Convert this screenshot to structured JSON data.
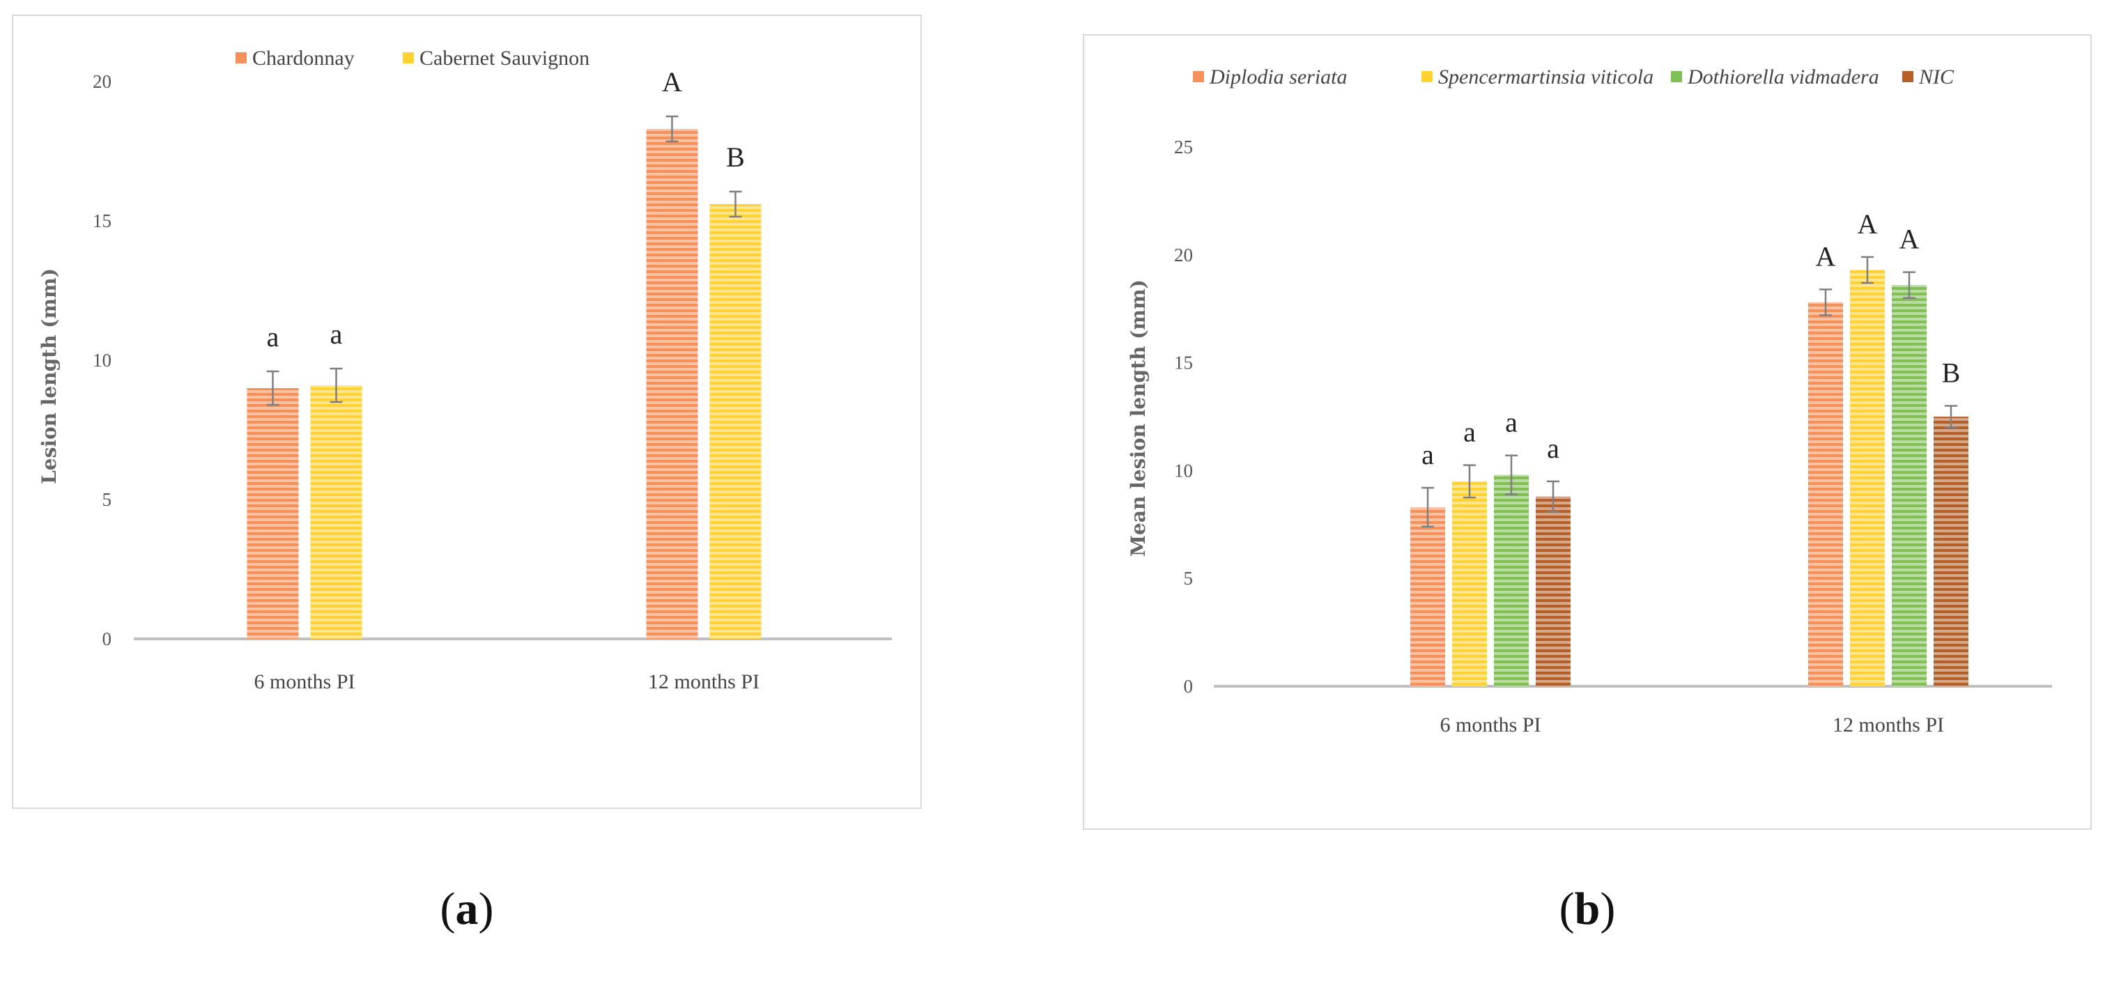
{
  "panels": [
    {
      "letter": "a",
      "open": "(",
      "close": ")"
    },
    {
      "letter": "b",
      "open": "(",
      "close": ")"
    }
  ],
  "chart_data": [
    {
      "type": "bar",
      "ylabel": "Lesion length (mm)",
      "xlabel": "",
      "ylim": [
        0,
        20
      ],
      "yticks": [
        "0",
        "5",
        "10",
        "15",
        "20"
      ],
      "categories": [
        "6 months PI",
        "12 months PI"
      ],
      "legend_position": "top",
      "series": [
        {
          "name": "Chardonnay",
          "color": "#f4905a",
          "values": [
            9.0,
            18.3
          ],
          "errors": [
            0.6,
            0.45
          ],
          "letters": [
            "a",
            "A"
          ]
        },
        {
          "name": "Cabernet Sauvignon",
          "color": "#fdd231",
          "values": [
            9.1,
            15.6
          ],
          "errors": [
            0.6,
            0.45
          ],
          "letters": [
            "a",
            "B"
          ]
        }
      ]
    },
    {
      "type": "bar",
      "ylabel": "Mean lesion length (mm)",
      "xlabel": "",
      "ylim": [
        0,
        25
      ],
      "yticks": [
        "0",
        "5",
        "10",
        "15",
        "20",
        "25"
      ],
      "categories": [
        "6 months PI",
        "12 months PI"
      ],
      "legend_position": "top",
      "series": [
        {
          "name": "Diplodia seriata",
          "color": "#f4905a",
          "values": [
            8.3,
            17.8
          ],
          "errors": [
            0.9,
            0.6
          ],
          "letters": [
            "a",
            "A"
          ]
        },
        {
          "name": "Spencermartinsia viticola",
          "color": "#fdd231",
          "values": [
            9.5,
            19.3
          ],
          "errors": [
            0.75,
            0.6
          ],
          "letters": [
            "a",
            "A"
          ]
        },
        {
          "name": "Dothiorella vidmadera",
          "color": "#7fbf55",
          "values": [
            9.8,
            18.6
          ],
          "errors": [
            0.9,
            0.6
          ],
          "letters": [
            "a",
            "A"
          ]
        },
        {
          "name": "NIC",
          "color": "#b5602a",
          "values": [
            8.8,
            12.5
          ],
          "errors": [
            0.7,
            0.5
          ],
          "letters": [
            "a",
            "B"
          ]
        }
      ]
    }
  ]
}
